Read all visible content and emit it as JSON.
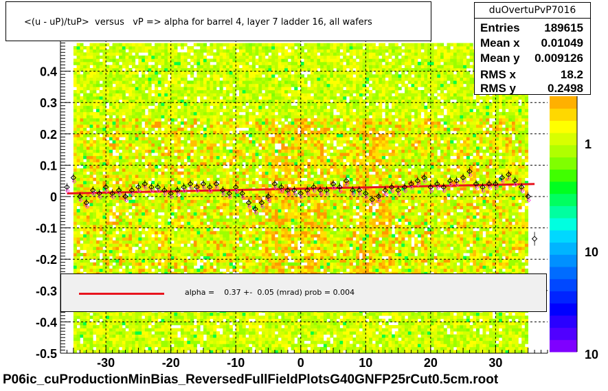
{
  "chart_data": {
    "type": "scatter",
    "title": "<(u - uP)/tuP>  versus   vP => alpha for barrel 4, layer 7 ladder 16, all wafers",
    "xlim": [
      -37,
      38
    ],
    "ylim": [
      -0.5,
      0.5
    ],
    "x_ticks": [
      "-30",
      "-20",
      "-10",
      "0",
      "10",
      "20",
      "30"
    ],
    "y_ticks": [
      "-0.5",
      "-0.4",
      "-0.3",
      "-0.2",
      "-0.1",
      "0",
      "0.1",
      "0.2",
      "0.3",
      "0.4"
    ],
    "grid": true,
    "colorbar_ticks": [
      "10",
      "1",
      "10"
    ],
    "colorbar_colors": [
      "#7f00ff",
      "#5000ff",
      "#2a00ff",
      "#0000ff",
      "#0024ff",
      "#0048ff",
      "#006cff",
      "#0090ff",
      "#00b4ff",
      "#00d8ff",
      "#00ffe0",
      "#00ffa0",
      "#00ff60",
      "#00ff20",
      "#40ff00",
      "#80ff00",
      "#b0ff00",
      "#d8ff00",
      "#ffff00",
      "#ffd800",
      "#ffb000"
    ],
    "fit_line": {
      "x": [
        -36,
        36
      ],
      "y": [
        0.01,
        0.04
      ],
      "color": "#e8141e"
    },
    "mean_points": {
      "x": [
        -36,
        -35,
        -34,
        -33,
        -32,
        -31,
        -30,
        -29,
        -28,
        -27,
        -26,
        -25,
        -24,
        -23,
        -22,
        -21,
        -20,
        -19,
        -18,
        -17,
        -16,
        -15,
        -14,
        -13,
        -12,
        -11,
        -10,
        -9,
        -8,
        -7,
        -6,
        -5,
        -4,
        -3,
        -2,
        -1,
        0,
        1,
        2,
        3,
        4,
        5,
        6,
        7,
        8,
        9,
        10,
        11,
        12,
        13,
        14,
        15,
        16,
        17,
        18,
        19,
        20,
        21,
        22,
        23,
        24,
        25,
        26,
        27,
        28,
        29,
        30,
        31,
        32,
        33,
        34,
        35
      ],
      "y": [
        0.03,
        0.06,
        0.0,
        -0.02,
        0.02,
        0.01,
        0.03,
        0.01,
        0.02,
        0.0,
        0.02,
        0.03,
        0.04,
        0.03,
        0.03,
        0.02,
        0.01,
        0.02,
        0.03,
        0.04,
        0.03,
        0.04,
        0.03,
        0.04,
        0.02,
        0.01,
        0.03,
        0.01,
        -0.02,
        -0.04,
        -0.02,
        0.0,
        0.04,
        0.03,
        0.02,
        0.02,
        0.01,
        0.02,
        0.03,
        0.02,
        0.02,
        0.04,
        0.03,
        0.05,
        0.02,
        0.02,
        0.01,
        -0.01,
        0.0,
        0.02,
        0.03,
        0.02,
        0.03,
        0.04,
        0.05,
        0.06,
        0.03,
        0.04,
        0.03,
        0.05,
        0.05,
        0.06,
        0.08,
        0.04,
        0.03,
        0.04,
        0.04,
        0.06,
        0.07,
        0.05,
        0.03,
        0.0
      ]
    },
    "extra_point": {
      "x": 36,
      "y": -0.135
    }
  },
  "stats": {
    "name": "duOvertuPvP7016",
    "rows": [
      {
        "key": "Entries",
        "value": "189615"
      },
      {
        "key": "Mean x",
        "value": "0.01049"
      },
      {
        "key": "Mean y",
        "value": "0.009126"
      },
      {
        "key": "RMS x",
        "value": "18.2"
      },
      {
        "key": "RMS y",
        "value": "0.2498"
      }
    ]
  },
  "legend": {
    "text": "alpha =    0.37 +-  0.05 (mrad) prob = 0.004"
  },
  "footer": "P06ic_cuProductionMinBias_ReversedFullFieldPlotsG40GNFP25rCut0.5cm.root"
}
